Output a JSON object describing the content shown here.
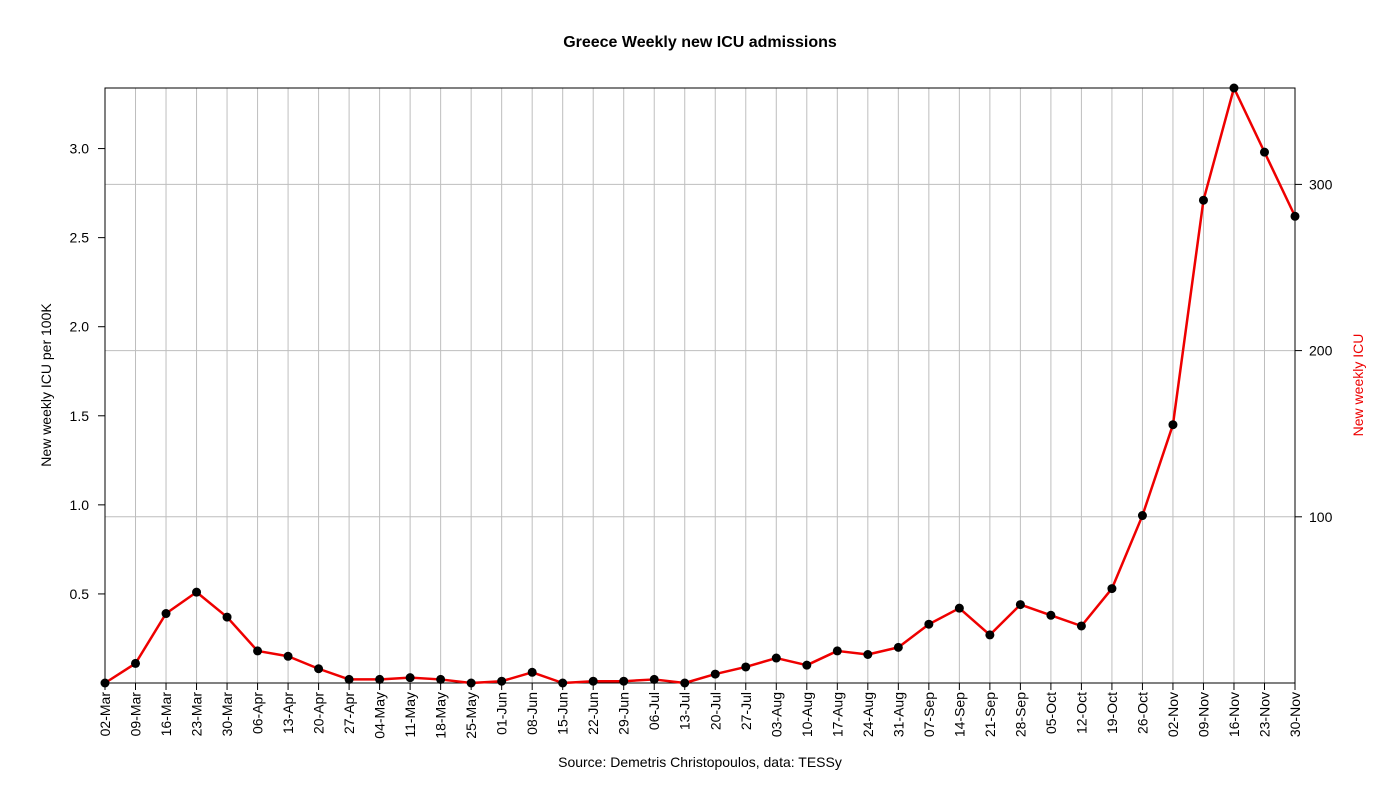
{
  "chart_data": {
    "type": "line",
    "title": "Greece Weekly new ICU admissions",
    "ylabel": "New weekly ICU per 100K",
    "y2label": "New weekly ICU",
    "caption": "Source: Demetris Christopoulos, data: TESSy",
    "categories": [
      "02-Mar",
      "09-Mar",
      "16-Mar",
      "23-Mar",
      "30-Mar",
      "06-Apr",
      "13-Apr",
      "20-Apr",
      "27-Apr",
      "04-May",
      "11-May",
      "18-May",
      "25-May",
      "01-Jun",
      "08-Jun",
      "15-Jun",
      "22-Jun",
      "29-Jun",
      "06-Jul",
      "13-Jul",
      "20-Jul",
      "27-Jul",
      "03-Aug",
      "10-Aug",
      "17-Aug",
      "24-Aug",
      "31-Aug",
      "07-Sep",
      "14-Sep",
      "21-Sep",
      "28-Sep",
      "05-Oct",
      "12-Oct",
      "19-Oct",
      "26-Oct",
      "02-Nov",
      "09-Nov",
      "16-Nov",
      "23-Nov",
      "30-Nov"
    ],
    "series": [
      {
        "values": [
          0.0,
          0.11,
          0.39,
          0.51,
          0.37,
          0.18,
          0.15,
          0.08,
          0.02,
          0.02,
          0.03,
          0.02,
          0.0,
          0.01,
          0.06,
          0.0,
          0.01,
          0.01,
          0.02,
          0.0,
          0.05,
          0.09,
          0.14,
          0.1,
          0.18,
          0.16,
          0.2,
          0.33,
          0.42,
          0.27,
          0.44,
          0.38,
          0.32,
          0.53,
          0.94,
          1.45,
          2.71,
          3.34,
          2.98,
          2.62
        ]
      }
    ],
    "ylim": [
      0,
      3.34
    ],
    "y_ticks": [
      "0.5",
      "1.0",
      "1.5",
      "2.0",
      "2.5",
      "3.0"
    ],
    "y_tick_values": [
      0.5,
      1.0,
      1.5,
      2.0,
      2.5,
      3.0
    ],
    "y2lim": [
      0,
      358
    ],
    "y2_ticks": [
      "100",
      "200",
      "300"
    ],
    "y2_tick_values": [
      100,
      200,
      300
    ],
    "grid": true,
    "colors": {
      "line": "#ee0000",
      "points": "#000000",
      "grid": "#bebebe",
      "y2label": "#ee0000"
    }
  }
}
